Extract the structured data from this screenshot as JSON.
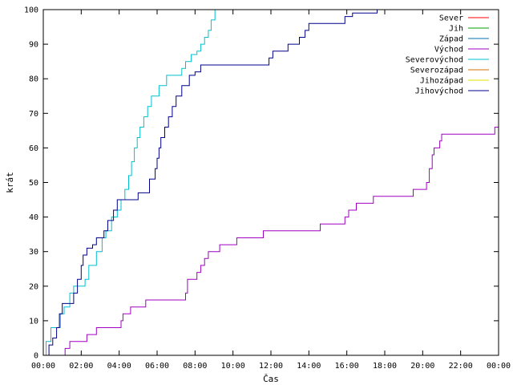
{
  "chart_data": {
    "type": "line",
    "xlabel": "Čas",
    "ylabel": "krát",
    "xlim": [
      0,
      24
    ],
    "ylim": [
      0,
      100
    ],
    "x_ticks": [
      {
        "v": 0,
        "label": "00:00"
      },
      {
        "v": 2,
        "label": "02:00"
      },
      {
        "v": 4,
        "label": "04:00"
      },
      {
        "v": 6,
        "label": "06:00"
      },
      {
        "v": 8,
        "label": "08:00"
      },
      {
        "v": 10,
        "label": "10:00"
      },
      {
        "v": 12,
        "label": "12:00"
      },
      {
        "v": 14,
        "label": "14:00"
      },
      {
        "v": 16,
        "label": "16:00"
      },
      {
        "v": 18,
        "label": "18:00"
      },
      {
        "v": 20,
        "label": "20:00"
      },
      {
        "v": 22,
        "label": "22:00"
      },
      {
        "v": 24,
        "label": "00:00"
      }
    ],
    "y_ticks": [
      0,
      10,
      20,
      30,
      40,
      50,
      60,
      70,
      80,
      90,
      100
    ],
    "legend_position": "top-right",
    "step": true,
    "series": [
      {
        "name": "Sever",
        "color": "#ff0000",
        "points": []
      },
      {
        "name": "Jih",
        "color": "#00a000",
        "points": []
      },
      {
        "name": "Západ",
        "color": "#0070b0",
        "points": []
      },
      {
        "name": "Východ",
        "color": "#a000c0",
        "points": [
          [
            1.1,
            0
          ],
          [
            1.15,
            2
          ],
          [
            1.4,
            4
          ],
          [
            2.3,
            6
          ],
          [
            2.8,
            8
          ],
          [
            4.1,
            10
          ],
          [
            4.2,
            12
          ],
          [
            4.6,
            14
          ],
          [
            5.4,
            16
          ],
          [
            7.5,
            18
          ],
          [
            7.6,
            22
          ],
          [
            8.1,
            24
          ],
          [
            8.3,
            26
          ],
          [
            8.5,
            28
          ],
          [
            8.7,
            30
          ],
          [
            9.3,
            32
          ],
          [
            10.2,
            34
          ],
          [
            11.6,
            36
          ],
          [
            14.6,
            38
          ],
          [
            15.9,
            40
          ],
          [
            16.1,
            42
          ],
          [
            16.5,
            44
          ],
          [
            17.4,
            46
          ],
          [
            19.5,
            48
          ],
          [
            20.2,
            50
          ],
          [
            20.35,
            54
          ],
          [
            20.5,
            58
          ],
          [
            20.6,
            60
          ],
          [
            20.9,
            62
          ],
          [
            21.0,
            64
          ],
          [
            23.8,
            66
          ],
          [
            24.0,
            66
          ]
        ]
      },
      {
        "name": "Severovýchod",
        "color": "#00c0d0",
        "points": [
          [
            0.0,
            0
          ],
          [
            0.15,
            4
          ],
          [
            0.4,
            8
          ],
          [
            0.9,
            12
          ],
          [
            1.1,
            14
          ],
          [
            1.4,
            18
          ],
          [
            1.6,
            20
          ],
          [
            2.2,
            22
          ],
          [
            2.4,
            26
          ],
          [
            2.8,
            30
          ],
          [
            3.1,
            34
          ],
          [
            3.3,
            36
          ],
          [
            3.6,
            40
          ],
          [
            3.9,
            42
          ],
          [
            4.1,
            45
          ],
          [
            4.3,
            48
          ],
          [
            4.5,
            52
          ],
          [
            4.65,
            56
          ],
          [
            4.8,
            60
          ],
          [
            4.95,
            63
          ],
          [
            5.1,
            66
          ],
          [
            5.3,
            69
          ],
          [
            5.5,
            72
          ],
          [
            5.7,
            75
          ],
          [
            6.1,
            78
          ],
          [
            6.5,
            81
          ],
          [
            7.3,
            83
          ],
          [
            7.5,
            85
          ],
          [
            7.8,
            87
          ],
          [
            8.1,
            88
          ],
          [
            8.3,
            90
          ],
          [
            8.5,
            92
          ],
          [
            8.7,
            94
          ],
          [
            8.85,
            97
          ],
          [
            9.05,
            100
          ]
        ]
      },
      {
        "name": "Severozápad",
        "color": "#d07000",
        "points": []
      },
      {
        "name": "Jihozápad",
        "color": "#e0e000",
        "points": []
      },
      {
        "name": "Jihovýchod",
        "color": "#00008b",
        "points": [
          [
            0.2,
            0
          ],
          [
            0.3,
            3
          ],
          [
            0.5,
            5
          ],
          [
            0.7,
            8
          ],
          [
            0.85,
            12
          ],
          [
            1.0,
            15
          ],
          [
            1.6,
            18
          ],
          [
            1.8,
            22
          ],
          [
            2.0,
            26
          ],
          [
            2.1,
            29
          ],
          [
            2.3,
            31
          ],
          [
            2.6,
            32
          ],
          [
            2.8,
            34
          ],
          [
            3.2,
            36
          ],
          [
            3.4,
            39
          ],
          [
            3.7,
            42
          ],
          [
            3.9,
            45
          ],
          [
            5.0,
            47
          ],
          [
            5.6,
            51
          ],
          [
            5.9,
            54
          ],
          [
            6.0,
            57
          ],
          [
            6.1,
            60
          ],
          [
            6.2,
            63
          ],
          [
            6.4,
            66
          ],
          [
            6.6,
            69
          ],
          [
            6.8,
            72
          ],
          [
            7.0,
            75
          ],
          [
            7.3,
            78
          ],
          [
            7.7,
            81
          ],
          [
            8.0,
            82
          ],
          [
            8.3,
            84
          ],
          [
            11.9,
            86
          ],
          [
            12.1,
            88
          ],
          [
            12.9,
            90
          ],
          [
            13.5,
            92
          ],
          [
            13.8,
            94
          ],
          [
            14.0,
            96
          ],
          [
            15.9,
            98
          ],
          [
            16.3,
            99
          ],
          [
            17.6,
            100
          ]
        ]
      }
    ]
  }
}
